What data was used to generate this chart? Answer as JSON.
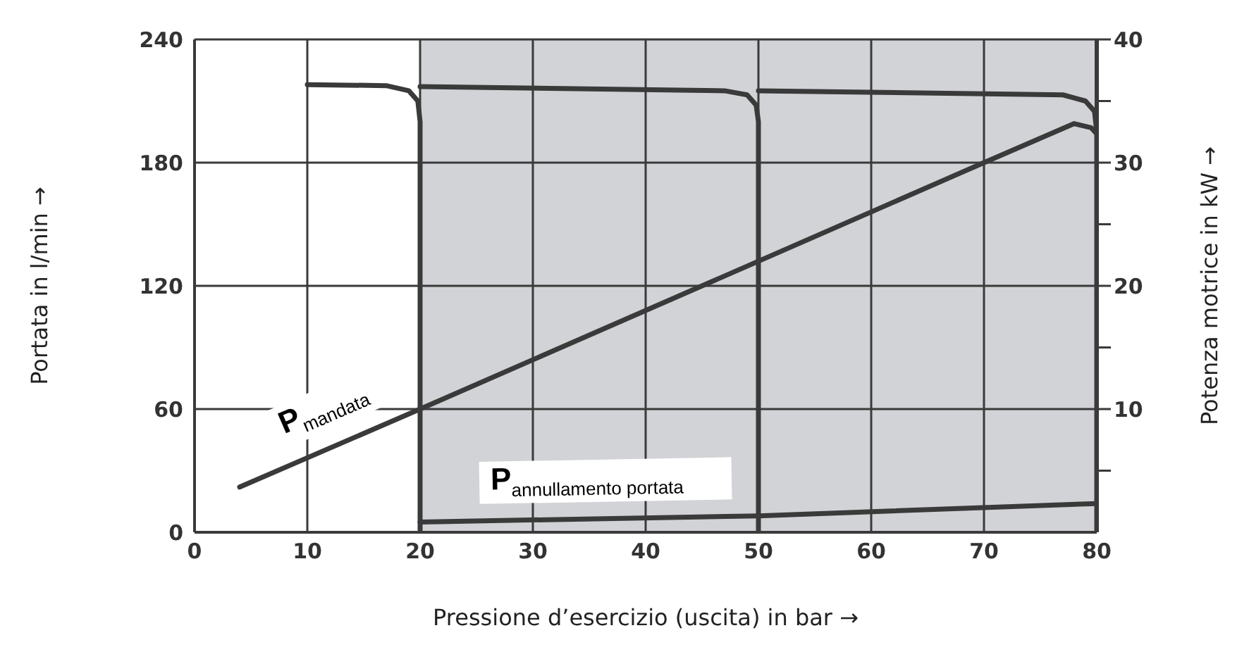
{
  "chart_data": {
    "type": "line",
    "xlabel": "Pressione d’esercizio (uscita) in bar →",
    "ylabel": "Portata in l/min →",
    "y2label": "Potenza motrice in kW →",
    "xlim": [
      0,
      80
    ],
    "xticks": [
      0,
      10,
      20,
      30,
      40,
      50,
      60,
      70,
      80
    ],
    "ylim": [
      0,
      240
    ],
    "yticks": [
      0,
      60,
      120,
      180,
      240
    ],
    "y2lim": [
      0,
      40
    ],
    "y2ticks": [
      {
        "value": 5,
        "label": null
      },
      10,
      {
        "value": 15,
        "label": null
      },
      20,
      {
        "value": 25,
        "label": null
      },
      30,
      {
        "value": 35,
        "label": null
      },
      40
    ],
    "grid": true,
    "marker": "none",
    "line_style": "solid",
    "bands": [
      {
        "axis": "x",
        "from": 20,
        "to": 80,
        "color": "#d1d3d6"
      }
    ],
    "series": [
      {
        "color": "#3a3a3a",
        "x": [
          10,
          17,
          19,
          19.8,
          20,
          20
        ],
        "values": [
          218,
          217.5,
          215,
          210,
          200,
          0
        ]
      },
      {
        "color": "#3a3a3a",
        "x": [
          20,
          47,
          49,
          49.8,
          50,
          50
        ],
        "values": [
          217,
          215,
          213,
          208,
          200,
          0
        ]
      },
      {
        "color": "#3a3a3a",
        "x": [
          50,
          77,
          79,
          79.8,
          80,
          80
        ],
        "values": [
          215,
          213,
          210,
          205,
          195,
          0
        ]
      },
      {
        "name": "P$_{mandata}$",
        "color": "#3a3a3a",
        "x": [
          4,
          20,
          70,
          78,
          79.5,
          80
        ],
        "values": [
          22,
          60,
          180,
          199,
          197,
          194
        ]
      },
      {
        "name": "P$_{annullamento portata}$",
        "color": "#3a3a3a",
        "x": [
          20,
          50,
          80
        ],
        "values": [
          5,
          8,
          14
        ]
      }
    ]
  }
}
